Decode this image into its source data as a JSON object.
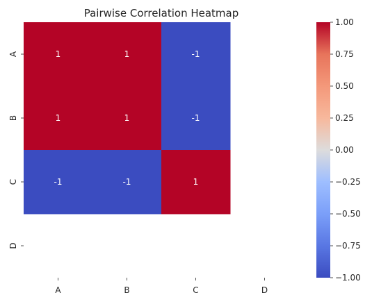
{
  "chart_data": {
    "type": "heatmap",
    "title": "Pairwise Correlation Heatmap",
    "x_categories": [
      "A",
      "B",
      "C",
      "D"
    ],
    "y_categories": [
      "A",
      "B",
      "C",
      "D"
    ],
    "values": [
      [
        1,
        1,
        -1,
        null
      ],
      [
        1,
        1,
        -1,
        null
      ],
      [
        -1,
        -1,
        1,
        null
      ],
      [
        null,
        null,
        null,
        null
      ]
    ],
    "annotations": [
      [
        "1",
        "1",
        "-1",
        ""
      ],
      [
        "1",
        "1",
        "-1",
        ""
      ],
      [
        "-1",
        "-1",
        "1",
        ""
      ],
      [
        "",
        "",
        "",
        ""
      ]
    ],
    "colormap": "coolwarm",
    "vmin": -1.0,
    "vmax": 1.0,
    "colorbar": {
      "ticks": [
        1.0,
        0.75,
        0.5,
        0.25,
        0.0,
        -0.25,
        -0.5,
        -0.75,
        -1.0
      ],
      "tick_labels": [
        "1.00",
        "0.75",
        "0.50",
        "0.25",
        "0.00",
        "−0.25",
        "−0.50",
        "−0.75",
        "−1.00"
      ]
    },
    "colors": {
      "max": "#b40426",
      "mid": "#dddcdc",
      "min": "#3b4cc0",
      "annotation_text": "#ffffff",
      "axis_text": "#262626"
    },
    "grid": false,
    "xlabel": "",
    "ylabel": ""
  }
}
